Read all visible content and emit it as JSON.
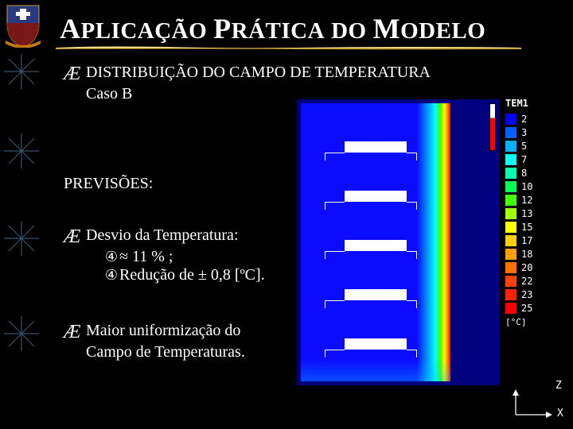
{
  "title": {
    "w1_cap": "A",
    "w1_rest": "PLICAÇÃO",
    "w2_cap": "P",
    "w2_rest": "RÁTICA",
    "w3_rest": "DO",
    "w4_cap": "M",
    "w4_rest": "ODELO"
  },
  "underline_gradient": [
    "#8a6a1a",
    "#e6c24a",
    "#fff3b0",
    "#e6c24a",
    "#8a6a1a"
  ],
  "bullet_glyph": "Æ",
  "heading1_line1": "DISTRIBUIÇÃO DO CAMPO DE TEMPERATURA",
  "heading1_line2": "Caso B",
  "previsoes": "PREVISÕES:",
  "block2": {
    "line1": "Desvio da Temperatura:",
    "sub1_num": "④",
    "sub1_text": "≈ 11 % ;",
    "sub2_num": "④",
    "sub2_text": "Redução de ± 0,8 [ºC]."
  },
  "block3": {
    "line1": "Maior uniformização do",
    "line2": "Campo de Temperaturas."
  },
  "legend": {
    "title": "TEM1",
    "unit": "[°C]",
    "items": [
      {
        "v": "2",
        "c": "#0000ff"
      },
      {
        "v": "3",
        "c": "#0060ff"
      },
      {
        "v": "5",
        "c": "#00b0ff"
      },
      {
        "v": "7",
        "c": "#00ffff"
      },
      {
        "v": "8",
        "c": "#00ffb0"
      },
      {
        "v": "10",
        "c": "#00ff50"
      },
      {
        "v": "12",
        "c": "#40ff00"
      },
      {
        "v": "13",
        "c": "#a0ff00"
      },
      {
        "v": "15",
        "c": "#ffff00"
      },
      {
        "v": "17",
        "c": "#ffd000"
      },
      {
        "v": "18",
        "c": "#ffa000"
      },
      {
        "v": "20",
        "c": "#ff7000"
      },
      {
        "v": "22",
        "c": "#ff4000"
      },
      {
        "v": "23",
        "c": "#ff2000"
      },
      {
        "v": "25",
        "c": "#ff0000"
      }
    ]
  },
  "simulation": {
    "bg": "#010180",
    "field_color": "#0b0bff",
    "gradient_stops": [
      {
        "p": 0,
        "c": "#0b0bff"
      },
      {
        "p": 55,
        "c": "#00ffff"
      },
      {
        "p": 70,
        "c": "#3cff00"
      },
      {
        "p": 82,
        "c": "#ffff00"
      },
      {
        "p": 92,
        "c": "#ff8000"
      },
      {
        "p": 100,
        "c": "#ff0000"
      }
    ],
    "shelves_y": [
      48,
      110,
      172,
      234,
      296
    ],
    "shelf": {
      "x": 55,
      "w": 78,
      "h": 14
    }
  },
  "axis": {
    "z": "Z",
    "x": "X"
  },
  "logo_colors": {
    "shield_top": "#2a3a80",
    "shield_bottom": "#7a1818",
    "ribbon": "#c07818"
  },
  "snowflake_color": "#6aa6d6"
}
